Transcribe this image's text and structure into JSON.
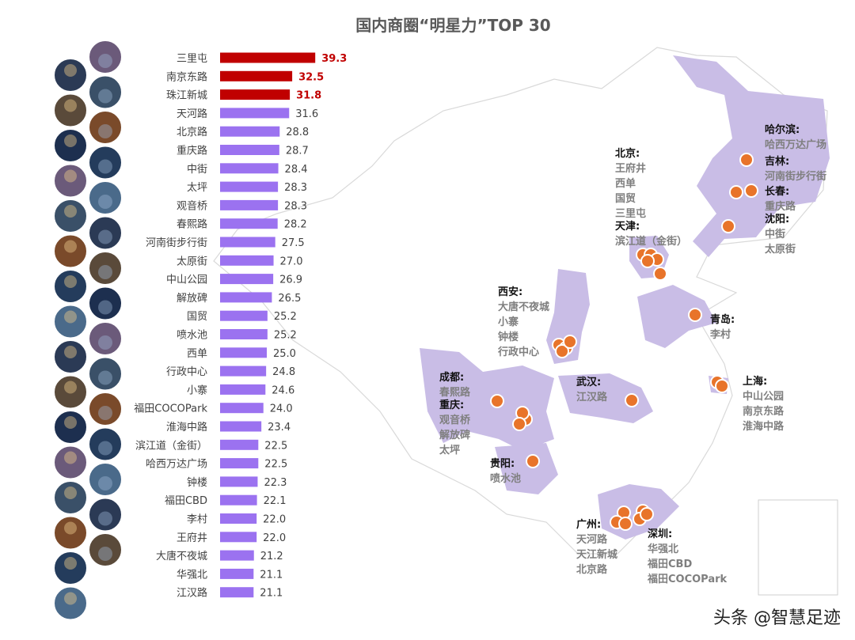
{
  "title": "国内商圈“明星力”TOP 30",
  "watermark": "头条 @智慧足迹",
  "colors": {
    "top": "#c00000",
    "rest": "#9b72f0",
    "region": "#c9bde6",
    "marker": "#e8742a",
    "cityName": "#111111",
    "district": "#7f7f7f"
  },
  "chart_data": {
    "type": "bar",
    "orientation": "horizontal",
    "title": "国内商圈“明星力”TOP 30",
    "categories": [
      "三里屯",
      "南京东路",
      "珠江新城",
      "天河路",
      "北京路",
      "重庆路",
      "中街",
      "太坪",
      "观音桥",
      "春熙路",
      "河南街步行街",
      "太原街",
      "中山公园",
      "解放碑",
      "国贸",
      "喷水池",
      "西单",
      "行政中心",
      "小寨",
      "福田COCOPark",
      "淮海中路",
      "滨江道（金街）",
      "哈西万达广场",
      "钟楼",
      "福田CBD",
      "李村",
      "王府井",
      "大唐不夜城",
      "华强北",
      "江汉路"
    ],
    "values": [
      39.3,
      32.5,
      31.8,
      31.6,
      28.8,
      28.7,
      28.4,
      28.3,
      28.3,
      28.2,
      27.5,
      27.0,
      26.9,
      26.5,
      25.2,
      25.2,
      25.0,
      24.8,
      24.6,
      24.0,
      23.4,
      22.5,
      22.5,
      22.3,
      22.1,
      22.0,
      22.0,
      21.2,
      21.1,
      21.1
    ],
    "value_labels": [
      "39.3",
      "32.5",
      "31.8",
      "31.6",
      "28.8",
      "28.7",
      "28.4",
      "28.3",
      "28.3",
      "28.2",
      "27.5",
      "27.0",
      "26.9",
      "26.5",
      "25.2",
      "25.2",
      "25.0",
      "24.8",
      "24.6",
      "24.0",
      "23.4",
      "22.5",
      "22.5",
      "22.3",
      "22.1",
      "22.0",
      "22.0",
      "21.2",
      "21.1",
      "21.1"
    ],
    "highlight_top": 3
  },
  "map_labels": [
    {
      "city": "北京:",
      "districts": [
        "王府井",
        "西单",
        "国贸",
        "三里屯"
      ]
    },
    {
      "city": "天津:",
      "districts": [
        "滨江道（金街）"
      ]
    },
    {
      "city": "哈尔滨:",
      "districts": [
        "哈西万达广场"
      ]
    },
    {
      "city": "吉林:",
      "districts": [
        "河南街步行街"
      ]
    },
    {
      "city": "长春:",
      "districts": [
        "重庆路"
      ]
    },
    {
      "city": "沈阳:",
      "districts": [
        "中街",
        "太原街"
      ]
    },
    {
      "city": "青岛:",
      "districts": [
        "李村"
      ]
    },
    {
      "city": "西安:",
      "districts": [
        "大唐不夜城",
        "小寨",
        "钟楼",
        "行政中心"
      ]
    },
    {
      "city": "成都:",
      "districts": [
        "春熙路"
      ]
    },
    {
      "city": "重庆:",
      "districts": [
        "观音桥",
        "解放碑",
        "太坪"
      ]
    },
    {
      "city": "武汉:",
      "districts": [
        "江汉路"
      ]
    },
    {
      "city": "上海:",
      "districts": [
        "中山公园",
        "南京东路",
        "淮海中路"
      ]
    },
    {
      "city": "贵阳:",
      "districts": [
        "喷水池"
      ]
    },
    {
      "city": "广州:",
      "districts": [
        "天河路",
        "天江新城",
        "北京路"
      ]
    },
    {
      "city": "深圳:",
      "districts": [
        "华强北",
        "福田CBD",
        "福田COCOPark"
      ]
    }
  ]
}
